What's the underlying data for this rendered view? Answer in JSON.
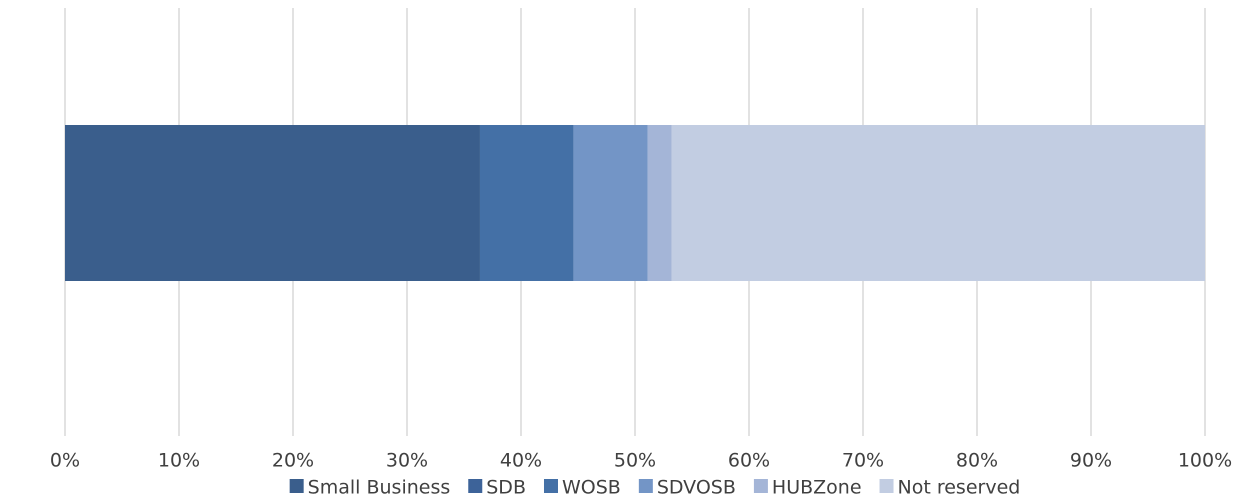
{
  "chart_data": {
    "type": "stacked_barh",
    "categories": [
      null
    ],
    "series": [
      {
        "name": "Small Business",
        "color": "#3a5e8c",
        "values": [
          36.4
        ]
      },
      {
        "name": "SDB",
        "color": "#3d6399",
        "values": [
          0
        ]
      },
      {
        "name": "WOSB",
        "color": "#4470a6",
        "values": [
          8.2
        ]
      },
      {
        "name": "SDVOSB",
        "color": "#7395c6",
        "values": [
          6.5
        ]
      },
      {
        "name": "HUBZone",
        "color": "#a4b5d7",
        "values": [
          2.1
        ]
      },
      {
        "name": "Not reserved",
        "color": "#c2cde2",
        "values": [
          46.8
        ]
      }
    ],
    "xlim": [
      0,
      100
    ],
    "xticks": [
      {
        "value": 0,
        "label": "0%"
      },
      {
        "value": 10,
        "label": "10%"
      },
      {
        "value": 20,
        "label": "20%"
      },
      {
        "value": 30,
        "label": "30%"
      },
      {
        "value": 40,
        "label": "40%"
      },
      {
        "value": 50,
        "label": "50%"
      },
      {
        "value": 60,
        "label": "60%"
      },
      {
        "value": 70,
        "label": "70%"
      },
      {
        "value": 80,
        "label": "80%"
      },
      {
        "value": 90,
        "label": "90%"
      },
      {
        "value": 100,
        "label": "100%"
      }
    ],
    "grid": true,
    "legend": "bottom"
  }
}
